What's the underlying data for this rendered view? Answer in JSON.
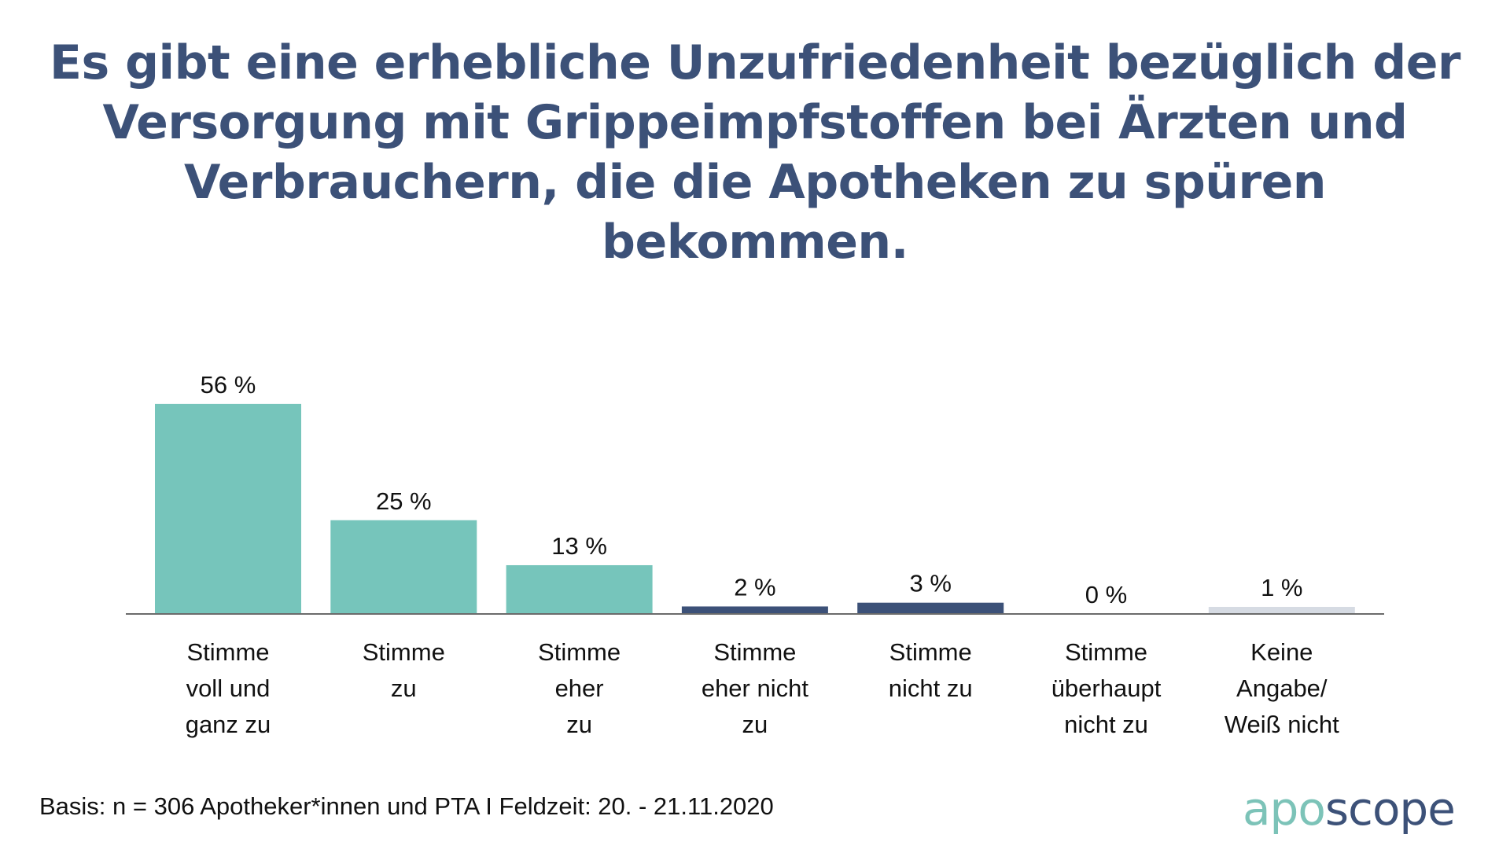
{
  "title": "Es gibt eine erhebliche Unzufriedenheit bezüglich der Versorgung mit Grippeimpfstoffen bei Ärzten und Verbrauchern, die die Apotheken zu spüren bekommen.",
  "footer": "Basis: n = 306 Apotheker*innen und PTA I Feldzeit: 20. - 21.11.2020",
  "logo": {
    "part1": "apo",
    "part2": "scope"
  },
  "colors": {
    "agree": "#76c5bb",
    "disagree": "#3c5178",
    "neutral": "#d6dbe3",
    "title": "#3c5178",
    "axis": "#6b6b6b"
  },
  "chart_data": {
    "type": "bar",
    "title": "Es gibt eine erhebliche Unzufriedenheit bezüglich der Versorgung mit Grippeimpfstoffen bei Ärzten und Verbrauchern, die die Apotheken zu spüren bekommen.",
    "xlabel": "",
    "ylabel": "",
    "ylim": [
      0,
      60
    ],
    "grid": false,
    "categories": [
      [
        "Stimme",
        "voll und",
        "ganz zu"
      ],
      [
        "Stimme",
        "zu"
      ],
      [
        "Stimme",
        "eher",
        "zu"
      ],
      [
        "Stimme",
        "eher nicht",
        "zu"
      ],
      [
        "Stimme",
        "nicht zu"
      ],
      [
        "Stimme",
        "überhaupt",
        "nicht zu"
      ],
      [
        "Keine",
        "Angabe/",
        "Weiß nicht"
      ]
    ],
    "values": [
      56,
      25,
      13,
      2,
      3,
      0,
      1
    ],
    "labels": [
      "56 %",
      "25 %",
      "13 %",
      "2 %",
      "3 %",
      "0 %",
      "1 %"
    ],
    "bar_colors": [
      "agree",
      "agree",
      "agree",
      "disagree",
      "disagree",
      "disagree",
      "neutral"
    ]
  }
}
